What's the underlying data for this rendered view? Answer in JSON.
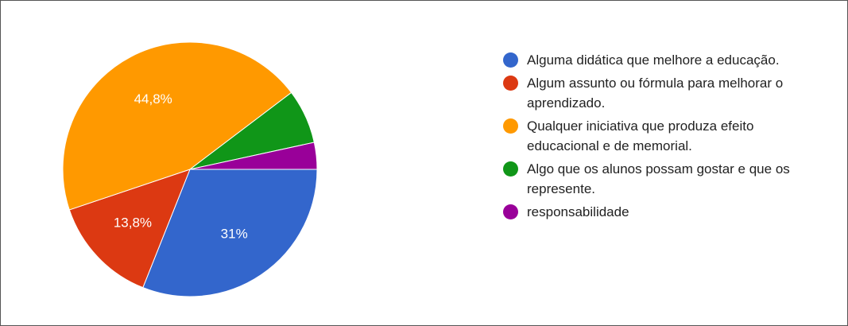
{
  "chart_data": {
    "type": "pie",
    "categories": [
      "Alguma didática que melhore a educação.",
      "Algum assunto ou fórmula para melhorar o aprendizado.",
      "Qualquer iniciativa que produza efeito educacional e de memorial.",
      "Algo que os alunos possam gostar e que os represente.",
      "responsabilidade"
    ],
    "values": [
      31,
      13.8,
      44.8,
      6.9,
      3.4
    ],
    "value_labels": [
      "31%",
      "13,8%",
      "44,8%",
      null,
      null
    ],
    "colors": [
      "#3366cc",
      "#dc3912",
      "#ff9900",
      "#109618",
      "#990099"
    ],
    "legend": "right"
  }
}
